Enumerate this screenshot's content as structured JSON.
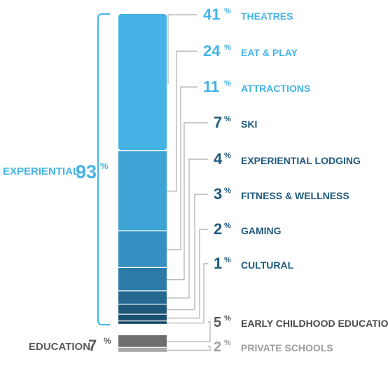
{
  "colors": {
    "experiential_bracket": "#45b3e6",
    "education_text": "#5a5a5a",
    "connector": "#b9b9b9"
  },
  "chart_data": {
    "type": "bar",
    "stacked": true,
    "total_percent": 100,
    "groups": [
      {
        "label": "EXPERIENTIAL",
        "value": 93,
        "unit": "%"
      },
      {
        "label": "EDUCATION",
        "value": 7,
        "unit": "%"
      }
    ],
    "segments": [
      {
        "label": "THEATRES",
        "value": 41,
        "group": "EXPERIENTIAL",
        "color": "#45b3e6"
      },
      {
        "label": "EAT & PLAY",
        "value": 24,
        "group": "EXPERIENTIAL",
        "color": "#3ea3d5"
      },
      {
        "label": "ATTRACTIONS",
        "value": 11,
        "group": "EXPERIENTIAL",
        "color": "#3590c1"
      },
      {
        "label": "SKI",
        "value": 7,
        "group": "EXPERIENTIAL",
        "color": "#2c7aa8"
      },
      {
        "label": "EXPERIENTIAL LODGING",
        "value": 4,
        "group": "EXPERIENTIAL",
        "color": "#246890"
      },
      {
        "label": "FITNESS & WELLNESS",
        "value": 3,
        "group": "EXPERIENTIAL",
        "color": "#1e587b"
      },
      {
        "label": "GAMING",
        "value": 2,
        "group": "EXPERIENTIAL",
        "color": "#1b4f6e"
      },
      {
        "label": "CULTURAL",
        "value": 1,
        "group": "EXPERIENTIAL",
        "color": "#184862"
      },
      {
        "label": "EARLY CHILDHOOD EDUCATION",
        "value": 5,
        "group": "EDUCATION",
        "color": "#6e6e6e"
      },
      {
        "label": "PRIVATE SCHOOLS",
        "value": 2,
        "group": "EDUCATION",
        "color": "#a8a8a8"
      }
    ]
  }
}
